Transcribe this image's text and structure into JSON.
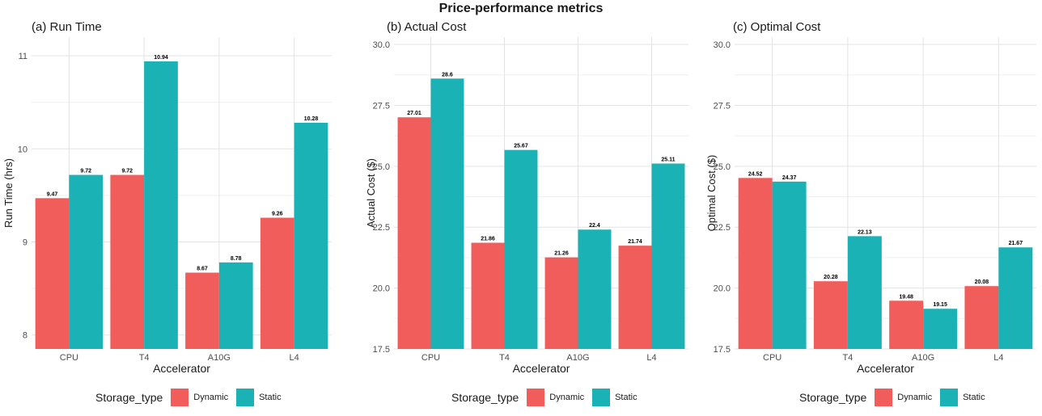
{
  "title": "Price-performance metrics",
  "legend": {
    "title": "Storage_type",
    "entries": [
      {
        "name": "Dynamic",
        "color": "#F15D5B"
      },
      {
        "name": "Static",
        "color": "#1BB2B6"
      }
    ]
  },
  "chart_data": [
    {
      "type": "bar",
      "title": "(a) Run Time",
      "xlabel": "Accelerator",
      "ylabel": "Run Time (hrs)",
      "categories": [
        "CPU",
        "T4",
        "A10G",
        "L4"
      ],
      "ylim": [
        7.85,
        11.2
      ],
      "yticks": [
        8,
        9,
        10,
        11
      ],
      "ytick_labels": [
        "8",
        "9",
        "10",
        "11"
      ],
      "grid": true,
      "legend_position": "bottom",
      "series": [
        {
          "name": "Dynamic",
          "values": [
            9.47,
            9.72,
            8.67,
            9.26
          ],
          "labels": [
            "9.47",
            "9.72",
            "8.67",
            "9.26"
          ],
          "color": "#F15D5B"
        },
        {
          "name": "Static",
          "values": [
            9.72,
            10.94,
            8.78,
            10.28
          ],
          "labels": [
            "9.72",
            "10.94",
            "8.78",
            "10.28"
          ],
          "color": "#1BB2B6"
        }
      ]
    },
    {
      "type": "bar",
      "title": "(b) Actual Cost",
      "xlabel": "Accelerator",
      "ylabel": "Actual Cost ($)",
      "categories": [
        "CPU",
        "T4",
        "A10G",
        "L4"
      ],
      "ylim": [
        17.5,
        30.3
      ],
      "yticks": [
        17.5,
        20,
        22.5,
        25,
        27.5,
        30
      ],
      "ytick_labels": [
        "17.5",
        "20.0",
        "22.5",
        "25.0",
        "27.5",
        "30.0"
      ],
      "grid": true,
      "legend_position": "bottom",
      "series": [
        {
          "name": "Dynamic",
          "values": [
            27.01,
            21.86,
            21.26,
            21.74
          ],
          "labels": [
            "27.01",
            "21.86",
            "21.26",
            "21.74"
          ],
          "color": "#F15D5B"
        },
        {
          "name": "Static",
          "values": [
            28.6,
            25.67,
            22.4,
            25.11
          ],
          "labels": [
            "28.6",
            "25.67",
            "22.4",
            "25.11"
          ],
          "color": "#1BB2B6"
        }
      ]
    },
    {
      "type": "bar",
      "title": "(c) Optimal Cost",
      "xlabel": "Accelerator",
      "ylabel": "Optimal Cost ($)",
      "categories": [
        "CPU",
        "T4",
        "A10G",
        "L4"
      ],
      "ylim": [
        17.5,
        30.3
      ],
      "yticks": [
        17.5,
        20,
        22.5,
        25,
        27.5,
        30
      ],
      "ytick_labels": [
        "17.5",
        "20.0",
        "22.5",
        "25.0",
        "27.5",
        "30.0"
      ],
      "grid": true,
      "legend_position": "bottom",
      "series": [
        {
          "name": "Dynamic",
          "values": [
            24.52,
            20.28,
            19.48,
            20.08
          ],
          "labels": [
            "24.52",
            "20.28",
            "19.48",
            "20.08"
          ],
          "color": "#F15D5B"
        },
        {
          "name": "Static",
          "values": [
            24.37,
            22.13,
            19.15,
            21.67
          ],
          "labels": [
            "24.37",
            "22.13",
            "19.15",
            "21.67"
          ],
          "color": "#1BB2B6"
        }
      ]
    }
  ]
}
